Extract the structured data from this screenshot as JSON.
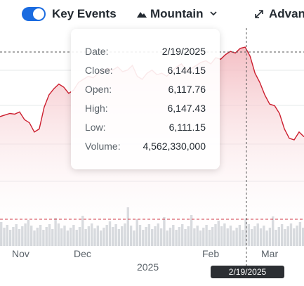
{
  "toolbar": {
    "key_events_label": "Key Events",
    "chart_type_label": "Mountain",
    "advanced_label": "Advan"
  },
  "tooltip": {
    "date_label": "Date:",
    "date_value": "2/19/2025",
    "close_label": "Close:",
    "close_value": "6,144.15",
    "open_label": "Open:",
    "open_value": "6,117.76",
    "high_label": "High:",
    "high_value": "6,147.43",
    "low_label": "Low:",
    "low_value": "6,111.15",
    "volume_label": "Volume:",
    "volume_value": "4,562,330,000"
  },
  "x_axis": {
    "labels": [
      "Nov",
      "Dec",
      "Feb",
      "Mar"
    ],
    "year_label": "2025"
  },
  "crosshair_date": "2/19/2025",
  "colors": {
    "line": "#cc1f2f",
    "fill": "#f6ccd0",
    "volume": "#d5d8dc",
    "toggle": "#1a6be0"
  },
  "chart_data": {
    "type": "area",
    "series": [
      {
        "values": [
          5920,
          5925,
          5930,
          5928,
          5935,
          5910,
          5900,
          5870,
          5880,
          5950,
          5990,
          6010,
          6025,
          6015,
          5995,
          6005,
          6030,
          6040,
          6050,
          6045,
          6060,
          6070,
          6075,
          6070,
          6080,
          6065,
          6070,
          6085,
          6050,
          6040,
          6060,
          6070,
          6055,
          6060,
          6050,
          6065,
          6080,
          6090,
          6070,
          6075,
          6085,
          6095,
          6100,
          6090,
          6110,
          6105,
          6120,
          6130,
          6125,
          6140,
          6144,
          6115,
          6060,
          6030,
          5990,
          5960,
          5955,
          5930,
          5880,
          5850,
          5845,
          5870,
          5855
        ]
      }
    ],
    "volume_series_visible": true
  }
}
